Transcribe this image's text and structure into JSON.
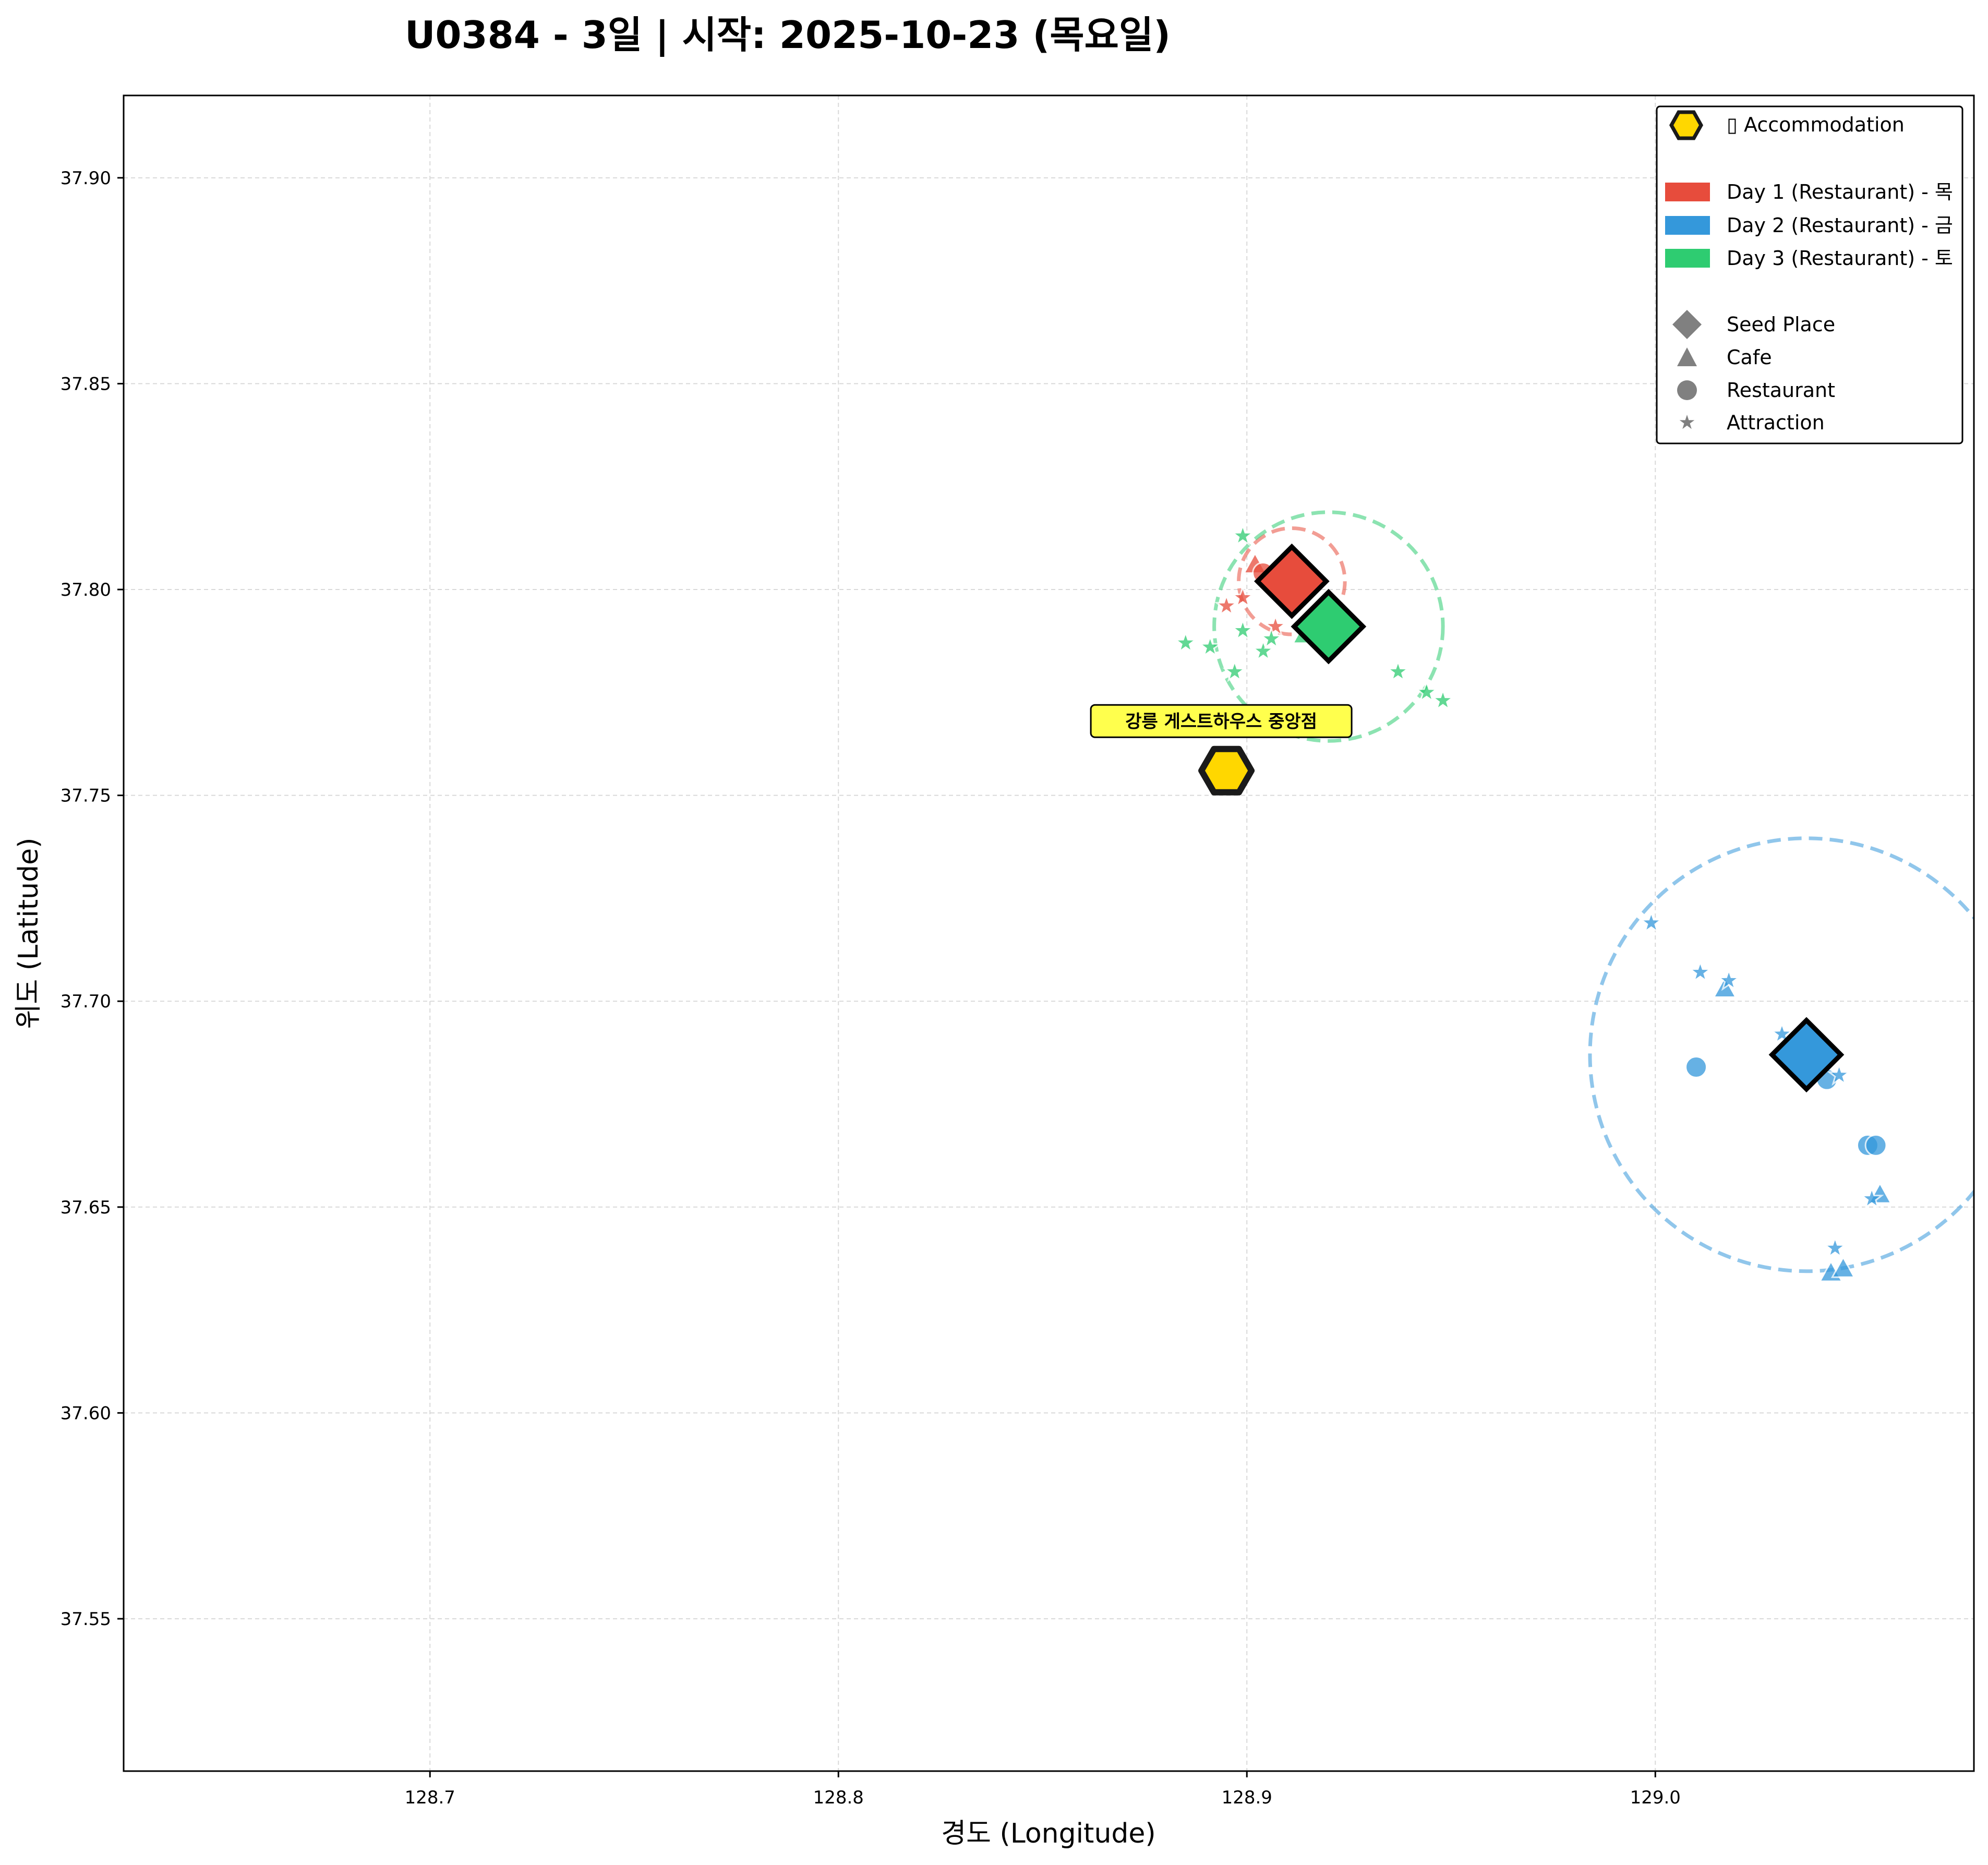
{
  "chart_data": {
    "type": "scatter",
    "title": "U0384 - 3일 | 시작: 2025-10-23 (목요일)",
    "xlabel": "경도 (Longitude)",
    "ylabel": "위도 (Latitude)",
    "xlim": [
      128.625,
      129.078
    ],
    "ylim": [
      37.513,
      37.92
    ],
    "x_ticks": [
      128.7,
      128.8,
      128.9,
      129.0
    ],
    "x_tick_labels": [
      "128.7",
      "128.8",
      "128.9",
      "129.0"
    ],
    "y_ticks": [
      37.55,
      37.6,
      37.65,
      37.7,
      37.75,
      37.8,
      37.85,
      37.9
    ],
    "y_tick_labels": [
      "37.55",
      "37.60",
      "37.65",
      "37.70",
      "37.75",
      "37.80",
      "37.85",
      "37.90"
    ],
    "grid": true,
    "legend_position": "top-right",
    "colors": {
      "day1": "#e74c3c",
      "day2": "#3498db",
      "day3": "#2ecc71",
      "accommodation": "#FFD700",
      "annotation_bg": "#ffff4d",
      "legend_gray": "#808080"
    },
    "legend": {
      "accommodation": "▯ Accommodation",
      "days": [
        "Day 1 (Restaurant) - 목",
        "Day 2 (Restaurant) - 금",
        "Day 3 (Restaurant) - 토"
      ],
      "types": [
        "Seed Place",
        "Cafe",
        "Restaurant",
        "Attraction"
      ]
    },
    "accommodation": {
      "name": "강릉 게스트하우스 중앙점",
      "x": 128.895,
      "y": 37.756
    },
    "series": [
      {
        "name": "Day 1 (Restaurant) - 목",
        "color": "#e74c3c",
        "seed": {
          "x": 128.911,
          "y": 37.802
        },
        "radius_circle": {
          "x": 128.911,
          "y": 37.802,
          "radius_deg": 0.013
        },
        "points": [
          {
            "x": 128.902,
            "y": 37.806,
            "kind": "cafe"
          },
          {
            "x": 128.904,
            "y": 37.804,
            "kind": "restaurant"
          },
          {
            "x": 128.895,
            "y": 37.796,
            "kind": "attraction"
          },
          {
            "x": 128.899,
            "y": 37.798,
            "kind": "attraction"
          },
          {
            "x": 128.907,
            "y": 37.791,
            "kind": "attraction"
          }
        ]
      },
      {
        "name": "Day 2 (Restaurant) - 금",
        "color": "#3498db",
        "seed": {
          "x": 129.037,
          "y": 37.687
        },
        "radius_circle": {
          "x": 129.037,
          "y": 37.687,
          "radius_deg": 0.053
        },
        "points": [
          {
            "x": 128.999,
            "y": 37.719,
            "kind": "attraction"
          },
          {
            "x": 129.011,
            "y": 37.707,
            "kind": "attraction"
          },
          {
            "x": 129.017,
            "y": 37.703,
            "kind": "cafe"
          },
          {
            "x": 129.018,
            "y": 37.705,
            "kind": "attraction"
          },
          {
            "x": 129.01,
            "y": 37.684,
            "kind": "restaurant"
          },
          {
            "x": 129.031,
            "y": 37.692,
            "kind": "attraction"
          },
          {
            "x": 129.042,
            "y": 37.681,
            "kind": "restaurant"
          },
          {
            "x": 129.045,
            "y": 37.682,
            "kind": "attraction"
          },
          {
            "x": 129.052,
            "y": 37.665,
            "kind": "restaurant"
          },
          {
            "x": 129.054,
            "y": 37.665,
            "kind": "restaurant"
          },
          {
            "x": 129.055,
            "y": 37.653,
            "kind": "cafe"
          },
          {
            "x": 129.053,
            "y": 37.652,
            "kind": "attraction"
          },
          {
            "x": 129.044,
            "y": 37.64,
            "kind": "attraction"
          },
          {
            "x": 129.043,
            "y": 37.634,
            "kind": "cafe"
          },
          {
            "x": 129.046,
            "y": 37.635,
            "kind": "cafe"
          }
        ]
      },
      {
        "name": "Day 3 (Restaurant) - 토",
        "color": "#2ecc71",
        "seed": {
          "x": 128.92,
          "y": 37.791
        },
        "radius_circle": {
          "x": 128.92,
          "y": 37.791,
          "radius_deg": 0.028
        },
        "points": [
          {
            "x": 128.899,
            "y": 37.813,
            "kind": "attraction"
          },
          {
            "x": 128.885,
            "y": 37.787,
            "kind": "attraction"
          },
          {
            "x": 128.891,
            "y": 37.786,
            "kind": "attraction"
          },
          {
            "x": 128.899,
            "y": 37.79,
            "kind": "attraction"
          },
          {
            "x": 128.904,
            "y": 37.785,
            "kind": "attraction"
          },
          {
            "x": 128.906,
            "y": 37.788,
            "kind": "attraction"
          },
          {
            "x": 128.897,
            "y": 37.78,
            "kind": "attraction"
          },
          {
            "x": 128.914,
            "y": 37.789,
            "kind": "cafe"
          },
          {
            "x": 128.937,
            "y": 37.78,
            "kind": "attraction"
          },
          {
            "x": 128.944,
            "y": 37.775,
            "kind": "attraction"
          },
          {
            "x": 128.948,
            "y": 37.773,
            "kind": "attraction"
          }
        ]
      }
    ]
  }
}
